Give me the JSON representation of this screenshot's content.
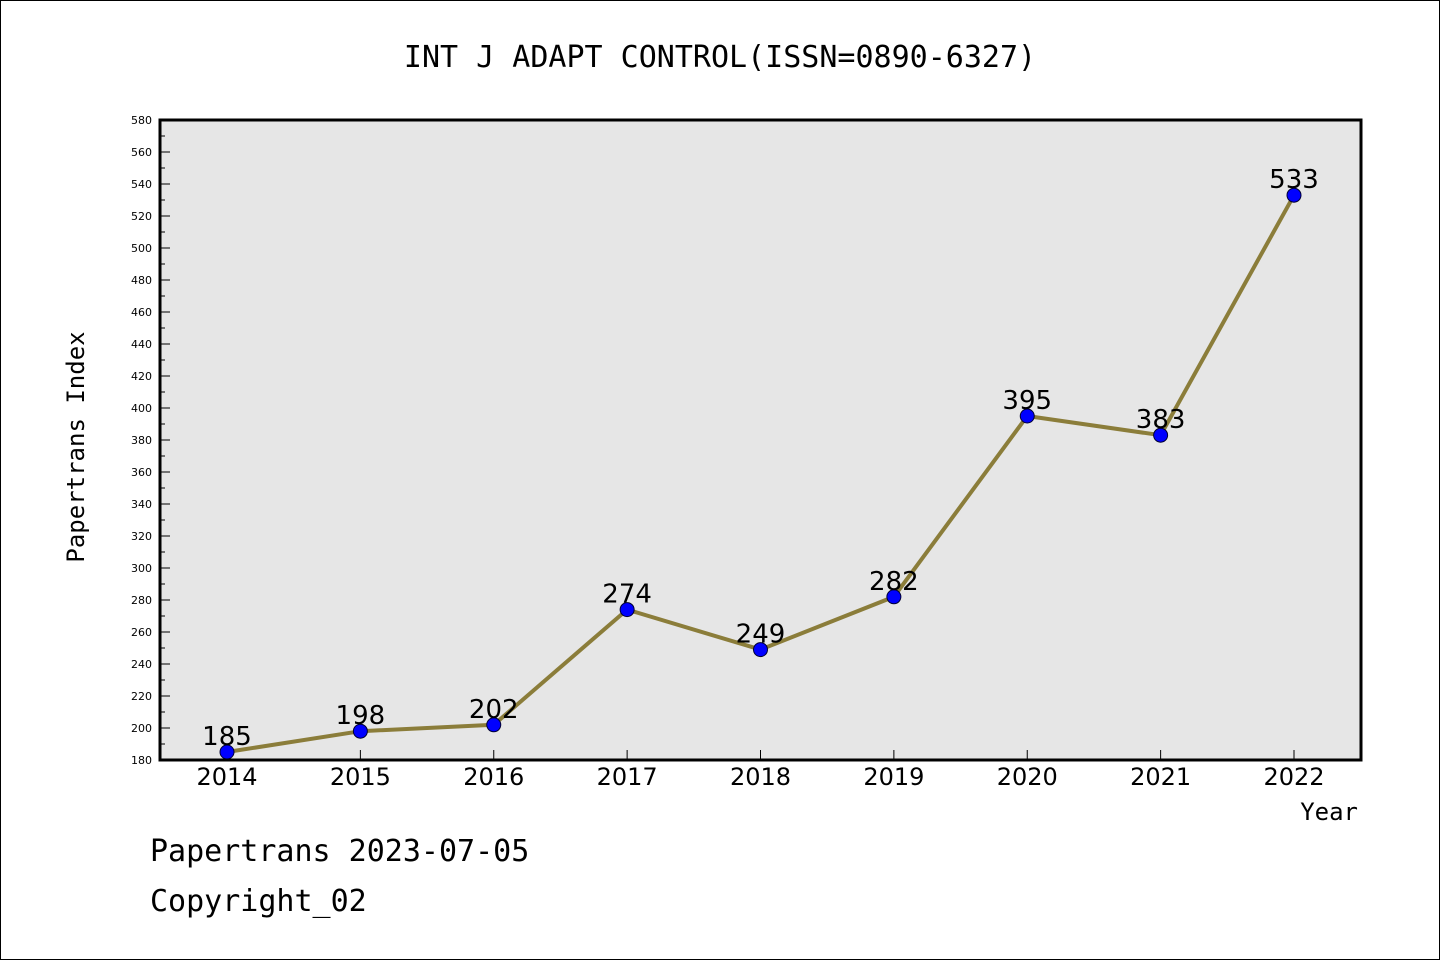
{
  "chart_data": {
    "type": "line",
    "title": "INT J ADAPT CONTROL(ISSN=0890-6327)",
    "xlabel": "Year",
    "ylabel": "Papertrans Index",
    "categories": [
      "2014",
      "2015",
      "2016",
      "2017",
      "2018",
      "2019",
      "2020",
      "2021",
      "2022"
    ],
    "values": [
      185,
      198,
      202,
      274,
      249,
      282,
      395,
      383,
      533
    ],
    "ylim": [
      180,
      580
    ],
    "yticks": [
      180,
      200,
      220,
      240,
      260,
      280,
      300,
      320,
      340,
      360,
      380,
      400,
      420,
      440,
      460,
      480,
      500,
      520,
      540,
      560,
      580
    ],
    "grid": false,
    "line_color": "#8b7d3a",
    "marker_color": "#0000ff",
    "plot_background": "#e6e6e6"
  },
  "footer": {
    "date_line": "Papertrans 2023-07-05",
    "copyright": "Copyright_02"
  }
}
